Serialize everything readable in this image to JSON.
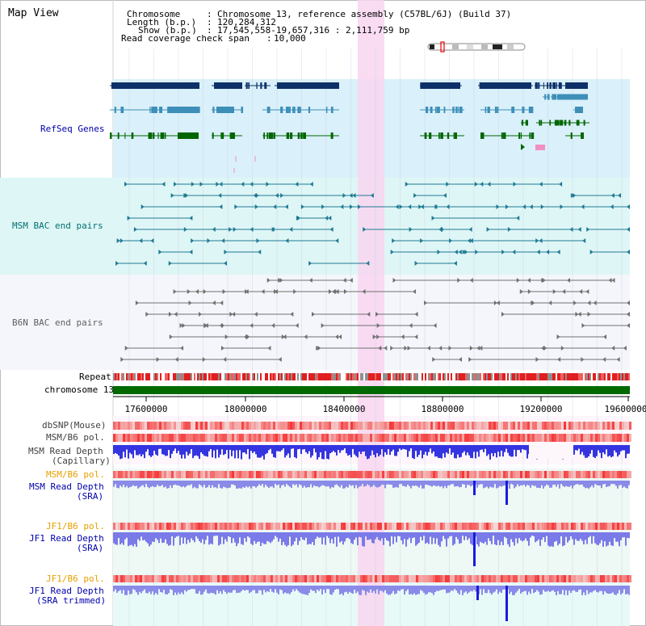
{
  "header": {
    "title": "Map View",
    "chromosome_key": "Chromosome",
    "chromosome_value": "Chromosome 13, reference assembly (C57BL/6J) (Build 37)",
    "length_key": "Length (b.p.)",
    "length_value": "120,284,312",
    "show_key": "Show (b.p.)",
    "show_value": "17,545,558-19,657,316 : 2,111,759 bp",
    "coverage_key": "Read coverage check span",
    "coverage_value": "10,000"
  },
  "tracks": {
    "refseq": "RefSeq Genes",
    "msm_bac": "MSM BAC end pairs",
    "b6n_bac": "B6N BAC end pairs",
    "repeat": "Repeat",
    "chromosome": "chromosome 13",
    "dbsnp": "dbSNP(Mouse)",
    "msm_b6_pol_1": "MSM/B6 pol.",
    "msm_depth_cap_1": "MSM Read Depth",
    "msm_depth_cap_2": "(Capillary)",
    "msm_b6_pol_2": "MSM/B6 pol.",
    "msm_depth_sra_1": "MSM Read Depth",
    "msm_depth_sra_2": "(SRA)",
    "jf1_b6_pol_1": "JF1/B6 pol.",
    "jf1_depth_sra_1": "JF1 Read Depth",
    "jf1_depth_sra_2": "(SRA)",
    "jf1_b6_pol_2": "JF1/B6 pol.",
    "jf1_depth_trim_1": "JF1 Read Depth",
    "jf1_depth_trim_2": "(SRA trimmed)"
  },
  "axis": {
    "ticks": [
      "17600000",
      "18000000",
      "18400000",
      "18800000",
      "19200000",
      "19600000"
    ]
  },
  "colors": {
    "refseq_bg": "#daf0fa",
    "bac_bg": "#dff6f6",
    "b6n_bg": "#f4f6fb",
    "highlight": "#f8d6f0",
    "gene_navy": "#0d3068",
    "gene_teal": "#3d8fb8",
    "gene_green": "#006600",
    "chromosome_bar": "#006a00",
    "msm_label": "#0000aa",
    "pol_label": "#e8a000",
    "depth_blue": "#2020d0"
  }
}
